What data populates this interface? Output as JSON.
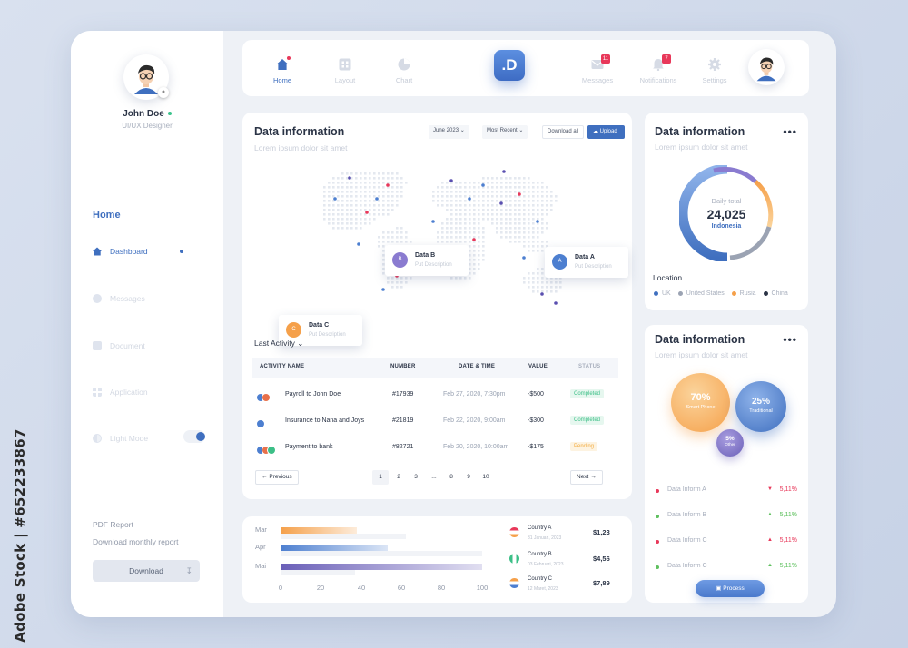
{
  "watermark_vertical": "Adobe Stock | #652233867",
  "user": {
    "name": "John Doe",
    "role": "UI/UX Designer"
  },
  "sidebar": {
    "section_title": "Home",
    "items": [
      {
        "label": "Dashboard",
        "icon": "home-icon",
        "active": true
      },
      {
        "label": "Messages",
        "icon": "message-icon",
        "active": false
      },
      {
        "label": "Document",
        "icon": "document-icon",
        "active": false
      },
      {
        "label": "Application",
        "icon": "grid-icon",
        "active": false
      },
      {
        "label": "Light Mode",
        "icon": "contrast-icon",
        "active": false
      }
    ],
    "pdf_title": "PDF Report",
    "pdf_subtitle": "Download monthly report",
    "download_label": "Download"
  },
  "topnav": {
    "items": [
      {
        "label": "Home",
        "icon": "home-icon",
        "active": true
      },
      {
        "label": "Layout",
        "icon": "grid-icon",
        "active": false
      },
      {
        "label": "Chart",
        "icon": "pie-chart-icon",
        "active": false
      },
      {
        "label": "Messages",
        "icon": "message-icon",
        "badge": "11"
      },
      {
        "label": "Notifications",
        "icon": "bell-icon",
        "badge": "7"
      },
      {
        "label": "Settings",
        "icon": "gear-icon"
      }
    ],
    "logo": ".D"
  },
  "main_card": {
    "title": "Data information",
    "subtitle": "Lorem ipsum dolor sit amet",
    "month_select": "June 2023",
    "sort_select": "Most Recent",
    "download_all": "Download all",
    "upload": "Upload",
    "map_tips": [
      {
        "letter": "B",
        "title": "Data B",
        "desc": "Put Description",
        "color": "#8a7bd0"
      },
      {
        "letter": "A",
        "title": "Data A",
        "desc": "Put Description",
        "color": "#4d7fd0"
      },
      {
        "letter": "C",
        "title": "Data C",
        "desc": "Put Description",
        "color": "#f5a04a"
      }
    ],
    "last_activity": "Last Activity",
    "table": {
      "headers": [
        "ACTIVITY NAME",
        "NUMBER",
        "DATE & TIME",
        "VALUE",
        "STATUS"
      ],
      "rows": [
        {
          "name": "Payroll to John Doe",
          "number": "#17939",
          "date": "Feb 27, 2020, 7:30pm",
          "value": "-$500",
          "status": "Completed"
        },
        {
          "name": "Insurance to Nana and Joys",
          "number": "#21819",
          "date": "Feb 22, 2020, 9:00am",
          "value": "-$300",
          "status": "Completed"
        },
        {
          "name": "Payment to bank",
          "number": "#82721",
          "date": "Feb 20, 2020, 10:00am",
          "value": "-$175",
          "status": "Pending"
        }
      ]
    },
    "pagination": {
      "previous": "Previous",
      "next": "Next",
      "pages": [
        "1",
        "2",
        "3",
        "...",
        "8",
        "9",
        "10"
      ],
      "current": "1"
    }
  },
  "bar_card": {
    "ticks": [
      "0",
      "20",
      "40",
      "60",
      "80",
      "100"
    ],
    "countries": [
      {
        "name": "Country A",
        "date": "31 Januari, 2023",
        "value": "$1,23"
      },
      {
        "name": "Country B",
        "date": "03 Februari, 2023",
        "value": "$4,56"
      },
      {
        "name": "Country C",
        "date": "12 Maret, 2023",
        "value": "$7,89"
      }
    ]
  },
  "chart_data": {
    "type": "bar",
    "orientation": "horizontal",
    "categories": [
      "Mar",
      "Apr",
      "Mai"
    ],
    "values": [
      38,
      53,
      100
    ],
    "background_values": [
      62,
      100,
      37
    ],
    "xlim": [
      0,
      100
    ],
    "colors": [
      "#f5a04a",
      "#4d7fd0",
      "#6a5fb8"
    ]
  },
  "donut_card": {
    "title": "Data information",
    "subtitle": "Lorem ipsum dolor sit amet",
    "center_label": "Daily total",
    "center_value": "24,025",
    "center_country": "Indonesia",
    "location_label": "Location",
    "legend": [
      {
        "label": "UK",
        "color": "#3f6fbf"
      },
      {
        "label": "United States",
        "color": "#9ba3b3"
      },
      {
        "label": "Rusia",
        "color": "#f5a04a"
      },
      {
        "label": "China",
        "color": "#2b3446"
      }
    ]
  },
  "bubble_card": {
    "title": "Data information",
    "subtitle": "Lorem ipsum dolor sit amet",
    "bubbles": [
      {
        "value": "70%",
        "label": "Smart Phone"
      },
      {
        "value": "25%",
        "label": "Traditional"
      },
      {
        "value": "5%",
        "label": "Other"
      }
    ],
    "items": [
      {
        "label": "Data Inform A",
        "value": "5,11%",
        "color": "#e8385a",
        "trend": "down"
      },
      {
        "label": "Data Inform B",
        "value": "5,11%",
        "color": "#5ec05e",
        "trend": "up"
      },
      {
        "label": "Data Inform C",
        "value": "5,11%",
        "color": "#e8385a",
        "trend": "up"
      },
      {
        "label": "Data Inform C",
        "value": "5,11%",
        "color": "#5ec05e",
        "trend": "up"
      }
    ],
    "process": "Process"
  }
}
